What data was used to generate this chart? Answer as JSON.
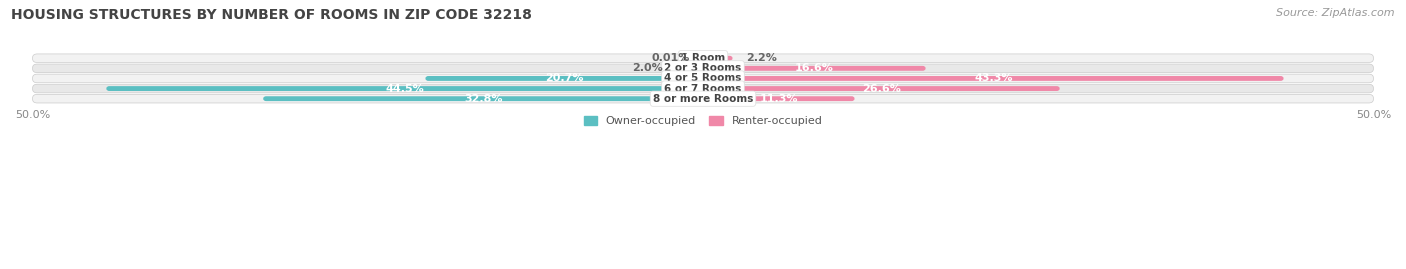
{
  "title": "HOUSING STRUCTURES BY NUMBER OF ROOMS IN ZIP CODE 32218",
  "source": "Source: ZipAtlas.com",
  "categories": [
    "1 Room",
    "2 or 3 Rooms",
    "4 or 5 Rooms",
    "6 or 7 Rooms",
    "8 or more Rooms"
  ],
  "owner_values": [
    0.01,
    2.0,
    20.7,
    44.5,
    32.8
  ],
  "renter_values": [
    2.2,
    16.6,
    43.3,
    26.6,
    11.3
  ],
  "owner_color": "#5bbfc2",
  "renter_color": "#f088a8",
  "row_color_odd": "#f2f2f2",
  "row_color_even": "#e8e8e8",
  "axis_min": -50.0,
  "axis_max": 50.0,
  "owner_label": "Owner-occupied",
  "renter_label": "Renter-occupied",
  "title_fontsize": 10,
  "source_fontsize": 8,
  "label_fontsize": 8,
  "tick_fontsize": 8
}
